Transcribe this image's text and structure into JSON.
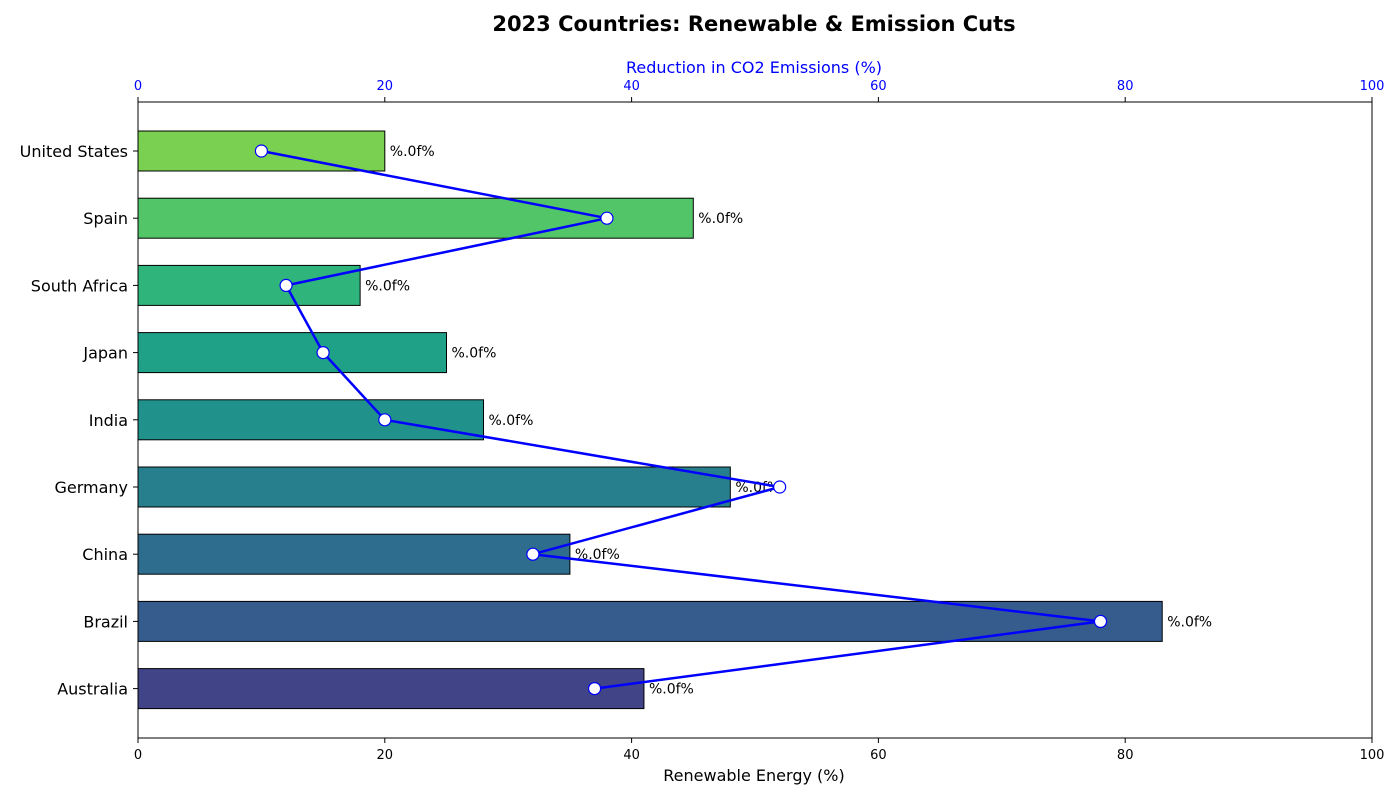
{
  "chart_data": {
    "type": "bar",
    "orientation": "horizontal",
    "title": "2023 Countries: Renewable & Emission Cuts",
    "xlabel": "Renewable Energy (%)",
    "secondary_xlabel": "Reduction in CO2 Emissions (%)",
    "xlim": [
      0,
      100
    ],
    "secondary_xlim": [
      0,
      100
    ],
    "xticks": [
      "0",
      "20",
      "40",
      "60",
      "80",
      "100"
    ],
    "secondary_xticks": [
      "0",
      "20",
      "40",
      "60",
      "80",
      "100"
    ],
    "categories": [
      "United States",
      "Spain",
      "South Africa",
      "Japan",
      "India",
      "Germany",
      "China",
      "Brazil",
      "Australia"
    ],
    "bar_values": [
      20,
      45,
      18,
      25,
      28,
      48,
      35,
      83,
      41
    ],
    "bar_labels": [
      "%.0f%",
      "%.0f%",
      "%.0f%",
      "%.0f%",
      "%.0f%",
      "%.0f%",
      "%.0f%",
      "%.0f%",
      "%.0f%"
    ],
    "bar_colors": [
      "#7ad151",
      "#52c569",
      "#2fb47c",
      "#1fa187",
      "#21918c",
      "#277f8e",
      "#2e6d8e",
      "#365c8d",
      "#414487"
    ],
    "line_values": [
      10,
      38,
      12,
      15,
      20,
      52,
      32,
      78,
      37
    ],
    "line_color": "#0000ff",
    "grid": false
  }
}
